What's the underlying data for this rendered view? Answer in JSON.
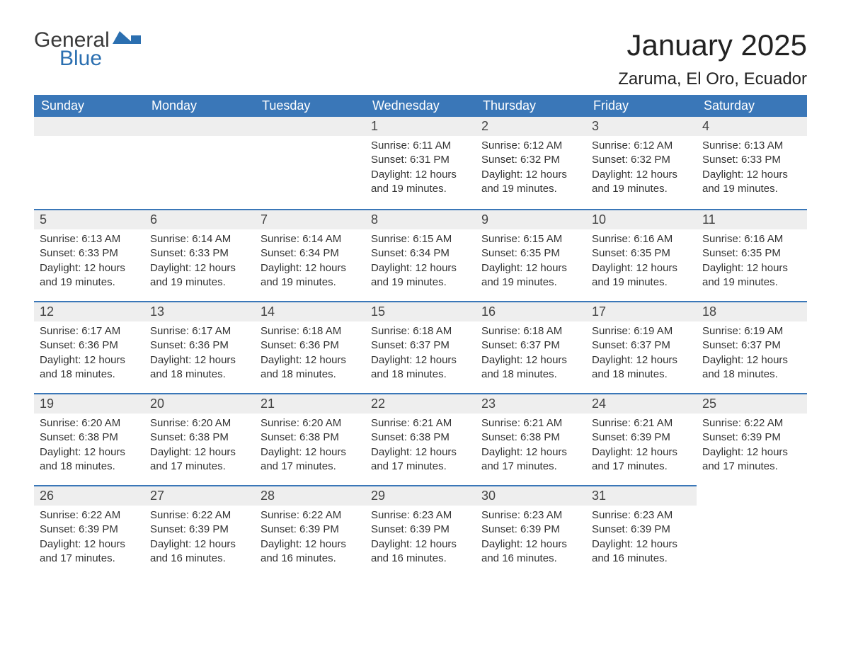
{
  "logo": {
    "text1": "General",
    "text2": "Blue"
  },
  "title": "January 2025",
  "location": "Zaruma, El Oro, Ecuador",
  "colors": {
    "header_bg": "#3a77b8",
    "header_text": "#ffffff",
    "daynum_bg": "#eeeeee",
    "daynum_border": "#3a77b8",
    "body_text": "#333333",
    "page_bg": "#ffffff",
    "logo_blue": "#2b6fb0",
    "logo_gray": "#3a3a3a"
  },
  "day_headers": [
    "Sunday",
    "Monday",
    "Tuesday",
    "Wednesday",
    "Thursday",
    "Friday",
    "Saturday"
  ],
  "weeks": [
    [
      null,
      null,
      null,
      {
        "n": "1",
        "sr": "Sunrise: 6:11 AM",
        "ss": "Sunset: 6:31 PM",
        "d1": "Daylight: 12 hours",
        "d2": "and 19 minutes."
      },
      {
        "n": "2",
        "sr": "Sunrise: 6:12 AM",
        "ss": "Sunset: 6:32 PM",
        "d1": "Daylight: 12 hours",
        "d2": "and 19 minutes."
      },
      {
        "n": "3",
        "sr": "Sunrise: 6:12 AM",
        "ss": "Sunset: 6:32 PM",
        "d1": "Daylight: 12 hours",
        "d2": "and 19 minutes."
      },
      {
        "n": "4",
        "sr": "Sunrise: 6:13 AM",
        "ss": "Sunset: 6:33 PM",
        "d1": "Daylight: 12 hours",
        "d2": "and 19 minutes."
      }
    ],
    [
      {
        "n": "5",
        "sr": "Sunrise: 6:13 AM",
        "ss": "Sunset: 6:33 PM",
        "d1": "Daylight: 12 hours",
        "d2": "and 19 minutes."
      },
      {
        "n": "6",
        "sr": "Sunrise: 6:14 AM",
        "ss": "Sunset: 6:33 PM",
        "d1": "Daylight: 12 hours",
        "d2": "and 19 minutes."
      },
      {
        "n": "7",
        "sr": "Sunrise: 6:14 AM",
        "ss": "Sunset: 6:34 PM",
        "d1": "Daylight: 12 hours",
        "d2": "and 19 minutes."
      },
      {
        "n": "8",
        "sr": "Sunrise: 6:15 AM",
        "ss": "Sunset: 6:34 PM",
        "d1": "Daylight: 12 hours",
        "d2": "and 19 minutes."
      },
      {
        "n": "9",
        "sr": "Sunrise: 6:15 AM",
        "ss": "Sunset: 6:35 PM",
        "d1": "Daylight: 12 hours",
        "d2": "and 19 minutes."
      },
      {
        "n": "10",
        "sr": "Sunrise: 6:16 AM",
        "ss": "Sunset: 6:35 PM",
        "d1": "Daylight: 12 hours",
        "d2": "and 19 minutes."
      },
      {
        "n": "11",
        "sr": "Sunrise: 6:16 AM",
        "ss": "Sunset: 6:35 PM",
        "d1": "Daylight: 12 hours",
        "d2": "and 19 minutes."
      }
    ],
    [
      {
        "n": "12",
        "sr": "Sunrise: 6:17 AM",
        "ss": "Sunset: 6:36 PM",
        "d1": "Daylight: 12 hours",
        "d2": "and 18 minutes."
      },
      {
        "n": "13",
        "sr": "Sunrise: 6:17 AM",
        "ss": "Sunset: 6:36 PM",
        "d1": "Daylight: 12 hours",
        "d2": "and 18 minutes."
      },
      {
        "n": "14",
        "sr": "Sunrise: 6:18 AM",
        "ss": "Sunset: 6:36 PM",
        "d1": "Daylight: 12 hours",
        "d2": "and 18 minutes."
      },
      {
        "n": "15",
        "sr": "Sunrise: 6:18 AM",
        "ss": "Sunset: 6:37 PM",
        "d1": "Daylight: 12 hours",
        "d2": "and 18 minutes."
      },
      {
        "n": "16",
        "sr": "Sunrise: 6:18 AM",
        "ss": "Sunset: 6:37 PM",
        "d1": "Daylight: 12 hours",
        "d2": "and 18 minutes."
      },
      {
        "n": "17",
        "sr": "Sunrise: 6:19 AM",
        "ss": "Sunset: 6:37 PM",
        "d1": "Daylight: 12 hours",
        "d2": "and 18 minutes."
      },
      {
        "n": "18",
        "sr": "Sunrise: 6:19 AM",
        "ss": "Sunset: 6:37 PM",
        "d1": "Daylight: 12 hours",
        "d2": "and 18 minutes."
      }
    ],
    [
      {
        "n": "19",
        "sr": "Sunrise: 6:20 AM",
        "ss": "Sunset: 6:38 PM",
        "d1": "Daylight: 12 hours",
        "d2": "and 18 minutes."
      },
      {
        "n": "20",
        "sr": "Sunrise: 6:20 AM",
        "ss": "Sunset: 6:38 PM",
        "d1": "Daylight: 12 hours",
        "d2": "and 17 minutes."
      },
      {
        "n": "21",
        "sr": "Sunrise: 6:20 AM",
        "ss": "Sunset: 6:38 PM",
        "d1": "Daylight: 12 hours",
        "d2": "and 17 minutes."
      },
      {
        "n": "22",
        "sr": "Sunrise: 6:21 AM",
        "ss": "Sunset: 6:38 PM",
        "d1": "Daylight: 12 hours",
        "d2": "and 17 minutes."
      },
      {
        "n": "23",
        "sr": "Sunrise: 6:21 AM",
        "ss": "Sunset: 6:38 PM",
        "d1": "Daylight: 12 hours",
        "d2": "and 17 minutes."
      },
      {
        "n": "24",
        "sr": "Sunrise: 6:21 AM",
        "ss": "Sunset: 6:39 PM",
        "d1": "Daylight: 12 hours",
        "d2": "and 17 minutes."
      },
      {
        "n": "25",
        "sr": "Sunrise: 6:22 AM",
        "ss": "Sunset: 6:39 PM",
        "d1": "Daylight: 12 hours",
        "d2": "and 17 minutes."
      }
    ],
    [
      {
        "n": "26",
        "sr": "Sunrise: 6:22 AM",
        "ss": "Sunset: 6:39 PM",
        "d1": "Daylight: 12 hours",
        "d2": "and 17 minutes."
      },
      {
        "n": "27",
        "sr": "Sunrise: 6:22 AM",
        "ss": "Sunset: 6:39 PM",
        "d1": "Daylight: 12 hours",
        "d2": "and 16 minutes."
      },
      {
        "n": "28",
        "sr": "Sunrise: 6:22 AM",
        "ss": "Sunset: 6:39 PM",
        "d1": "Daylight: 12 hours",
        "d2": "and 16 minutes."
      },
      {
        "n": "29",
        "sr": "Sunrise: 6:23 AM",
        "ss": "Sunset: 6:39 PM",
        "d1": "Daylight: 12 hours",
        "d2": "and 16 minutes."
      },
      {
        "n": "30",
        "sr": "Sunrise: 6:23 AM",
        "ss": "Sunset: 6:39 PM",
        "d1": "Daylight: 12 hours",
        "d2": "and 16 minutes."
      },
      {
        "n": "31",
        "sr": "Sunrise: 6:23 AM",
        "ss": "Sunset: 6:39 PM",
        "d1": "Daylight: 12 hours",
        "d2": "and 16 minutes."
      },
      null
    ]
  ]
}
